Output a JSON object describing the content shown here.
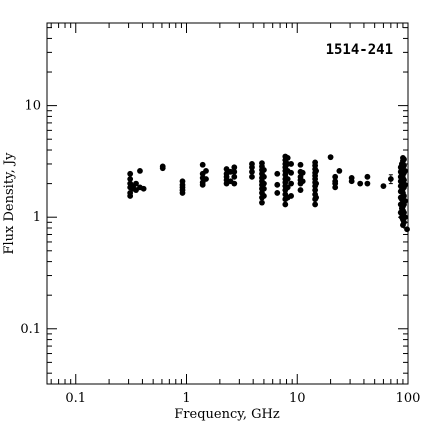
{
  "chart_data": {
    "type": "scatter",
    "title": "1514-241",
    "xlabel": "Frequency, GHz",
    "ylabel": "Flux Density, Jy",
    "x_scale": "log",
    "y_scale": "log",
    "xlim": [
      0.055,
      100
    ],
    "ylim": [
      0.032,
      55
    ],
    "x_ticks": [
      {
        "value": 0.1,
        "label": "0.1"
      },
      {
        "value": 1,
        "label": "1"
      },
      {
        "value": 10,
        "label": "10"
      },
      {
        "value": 100,
        "label": "100"
      }
    ],
    "y_ticks": [
      {
        "value": 0.1,
        "label": "0.1"
      },
      {
        "value": 1,
        "label": "1"
      },
      {
        "value": 10,
        "label": "10"
      }
    ],
    "grid": false,
    "points": [
      [
        0.31,
        1.55
      ],
      [
        0.31,
        1.65
      ],
      [
        0.31,
        1.85
      ],
      [
        0.31,
        2.0
      ],
      [
        0.31,
        2.2
      ],
      [
        0.31,
        2.45
      ],
      [
        0.33,
        1.8
      ],
      [
        0.33,
        1.9
      ],
      [
        0.35,
        1.75
      ],
      [
        0.35,
        2.0
      ],
      [
        0.38,
        1.85
      ],
      [
        0.38,
        2.6
      ],
      [
        0.41,
        1.8
      ],
      [
        0.61,
        2.75
      ],
      [
        0.61,
        2.85
      ],
      [
        0.92,
        1.65
      ],
      [
        0.92,
        1.75
      ],
      [
        0.92,
        1.85
      ],
      [
        0.92,
        1.95
      ],
      [
        0.92,
        2.1
      ],
      [
        1.4,
        1.95
      ],
      [
        1.4,
        2.05
      ],
      [
        1.4,
        2.25
      ],
      [
        1.4,
        2.45
      ],
      [
        1.4,
        2.95
      ],
      [
        1.5,
        2.2
      ],
      [
        1.5,
        2.6
      ],
      [
        2.3,
        2.0
      ],
      [
        2.3,
        2.15
      ],
      [
        2.3,
        2.3
      ],
      [
        2.3,
        2.45
      ],
      [
        2.3,
        2.7
      ],
      [
        2.5,
        2.1
      ],
      [
        2.5,
        2.55
      ],
      [
        2.7,
        2.0
      ],
      [
        2.7,
        2.3
      ],
      [
        2.7,
        2.55
      ],
      [
        2.7,
        2.8
      ],
      [
        3.9,
        2.3
      ],
      [
        3.9,
        2.55
      ],
      [
        3.9,
        2.8
      ],
      [
        3.9,
        3.0
      ],
      [
        4.8,
        1.35
      ],
      [
        4.8,
        1.5
      ],
      [
        4.8,
        1.65
      ],
      [
        4.8,
        1.8
      ],
      [
        4.8,
        1.95
      ],
      [
        4.8,
        2.1
      ],
      [
        4.8,
        2.25
      ],
      [
        4.8,
        2.45
      ],
      [
        4.8,
        2.65
      ],
      [
        4.8,
        2.85
      ],
      [
        4.8,
        3.05
      ],
      [
        5.0,
        1.55
      ],
      [
        5.0,
        1.8
      ],
      [
        5.0,
        2.0
      ],
      [
        5.0,
        2.3
      ],
      [
        5.0,
        2.65
      ],
      [
        6.6,
        1.65
      ],
      [
        6.6,
        1.95
      ],
      [
        6.6,
        2.45
      ],
      [
        7.8,
        1.3
      ],
      [
        7.8,
        1.45
      ],
      [
        7.8,
        1.6
      ],
      [
        7.8,
        1.75
      ],
      [
        7.8,
        1.9
      ],
      [
        7.8,
        2.05
      ],
      [
        7.8,
        2.2
      ],
      [
        7.8,
        2.4
      ],
      [
        7.8,
        2.6
      ],
      [
        7.8,
        2.8
      ],
      [
        7.8,
        3.0
      ],
      [
        7.8,
        3.25
      ],
      [
        7.8,
        3.5
      ],
      [
        8.2,
        1.5
      ],
      [
        8.2,
        1.85
      ],
      [
        8.2,
        2.2
      ],
      [
        8.2,
        2.6
      ],
      [
        8.2,
        3.0
      ],
      [
        8.2,
        3.4
      ],
      [
        8.8,
        1.55
      ],
      [
        8.8,
        2.0
      ],
      [
        8.8,
        2.5
      ],
      [
        8.8,
        3.0
      ],
      [
        10.7,
        1.75
      ],
      [
        10.7,
        2.0
      ],
      [
        10.7,
        2.15
      ],
      [
        10.7,
        2.3
      ],
      [
        10.7,
        2.55
      ],
      [
        10.7,
        2.95
      ],
      [
        11.2,
        2.1
      ],
      [
        11.2,
        2.5
      ],
      [
        14.5,
        1.3
      ],
      [
        14.5,
        1.45
      ],
      [
        14.5,
        1.6
      ],
      [
        14.5,
        1.75
      ],
      [
        14.5,
        1.9
      ],
      [
        14.5,
        2.05
      ],
      [
        14.5,
        2.2
      ],
      [
        14.5,
        2.35
      ],
      [
        14.5,
        2.5
      ],
      [
        14.5,
        2.7
      ],
      [
        14.5,
        2.9
      ],
      [
        14.5,
        3.1
      ],
      [
        14.8,
        1.5
      ],
      [
        14.8,
        2.0
      ],
      [
        14.8,
        2.6
      ],
      [
        20,
        3.45
      ],
      [
        22,
        1.85
      ],
      [
        22,
        2.0
      ],
      [
        22,
        2.1
      ],
      [
        22,
        2.3
      ],
      [
        24,
        2.6
      ],
      [
        31,
        2.1
      ],
      [
        31,
        2.25
      ],
      [
        37,
        2.0
      ],
      [
        43,
        2.3
      ],
      [
        43,
        2.0
      ],
      [
        60,
        1.9
      ],
      [
        70,
        2.2
      ],
      [
        86,
        1.1
      ],
      [
        86,
        1.3
      ],
      [
        86,
        1.5
      ],
      [
        86,
        1.7
      ],
      [
        86,
        1.9
      ],
      [
        86,
        2.1
      ],
      [
        86,
        2.3
      ],
      [
        86,
        2.55
      ],
      [
        86,
        2.8
      ],
      [
        88,
        1.0
      ],
      [
        88,
        1.2
      ],
      [
        88,
        1.45
      ],
      [
        88,
        1.75
      ],
      [
        88,
        2.05
      ],
      [
        88,
        2.4
      ],
      [
        88,
        2.75
      ],
      [
        88,
        3.0
      ],
      [
        90,
        0.85
      ],
      [
        90,
        0.95
      ],
      [
        90,
        1.05
      ],
      [
        90,
        1.15
      ],
      [
        90,
        1.25
      ],
      [
        90,
        1.35
      ],
      [
        90,
        1.5
      ],
      [
        90,
        1.65
      ],
      [
        90,
        1.8
      ],
      [
        90,
        1.95
      ],
      [
        90,
        2.1
      ],
      [
        90,
        2.25
      ],
      [
        90,
        2.4
      ],
      [
        90,
        2.6
      ],
      [
        90,
        2.8
      ],
      [
        90,
        3.0
      ],
      [
        90,
        3.2
      ],
      [
        90,
        3.4
      ],
      [
        92,
        0.9
      ],
      [
        92,
        1.1
      ],
      [
        92,
        1.3
      ],
      [
        92,
        1.55
      ],
      [
        92,
        1.85
      ],
      [
        92,
        2.15
      ],
      [
        92,
        2.5
      ],
      [
        92,
        2.9
      ],
      [
        92,
        3.3
      ],
      [
        94,
        1.0
      ],
      [
        94,
        1.4
      ],
      [
        94,
        1.95
      ],
      [
        94,
        2.6
      ],
      [
        98,
        0.78
      ]
    ],
    "error_bars": [
      {
        "x": 70,
        "y": 2.2,
        "ylow": 2.0,
        "yhigh": 2.4
      }
    ]
  }
}
